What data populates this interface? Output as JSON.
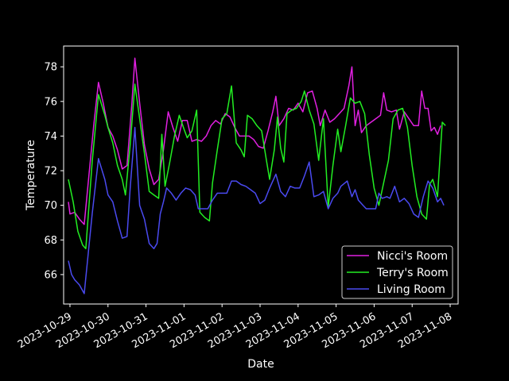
{
  "chart_data": {
    "type": "line",
    "xlabel": "Date",
    "ylabel": "Temperature",
    "x_range": [
      "2023-10-28T20:00",
      "2023-11-08T05:00"
    ],
    "ylim": [
      64.3,
      79.2
    ],
    "x_ticks": [
      "2023-10-29",
      "2023-10-30",
      "2023-10-31",
      "2023-11-01",
      "2023-11-02",
      "2023-11-03",
      "2023-11-04",
      "2023-11-05",
      "2023-11-06",
      "2023-11-07",
      "2023-11-08"
    ],
    "y_ticks": [
      66,
      68,
      70,
      72,
      74,
      76,
      78
    ],
    "grid": false,
    "legend_position": "lower-right",
    "series": [
      {
        "name": "Nicci's Room",
        "color": "#e020e0",
        "points": [
          [
            "2023-10-28T23:00",
            70.2
          ],
          [
            "2023-10-29T00:00",
            69.5
          ],
          [
            "2023-10-29T03:00",
            69.6
          ],
          [
            "2023-10-29T06:00",
            69.2
          ],
          [
            "2023-10-29T09:00",
            68.9
          ],
          [
            "2023-10-29T15:00",
            74.6
          ],
          [
            "2023-10-29T18:00",
            77.1
          ],
          [
            "2023-10-29T21:00",
            75.9
          ],
          [
            "2023-10-30T00:00",
            74.5
          ],
          [
            "2023-10-30T03:00",
            74.0
          ],
          [
            "2023-10-30T06:00",
            73.2
          ],
          [
            "2023-10-30T09:00",
            72.1
          ],
          [
            "2023-10-30T12:00",
            72.3
          ],
          [
            "2023-10-30T15:00",
            75.8
          ],
          [
            "2023-10-30T17:00",
            78.5
          ],
          [
            "2023-10-30T20:00",
            75.9
          ],
          [
            "2023-10-30T23:00",
            73.5
          ],
          [
            "2023-10-31T02:00",
            72.1
          ],
          [
            "2023-10-31T05:00",
            71.2
          ],
          [
            "2023-10-31T08:00",
            71.5
          ],
          [
            "2023-10-31T11:00",
            73.2
          ],
          [
            "2023-10-31T14:00",
            75.4
          ],
          [
            "2023-10-31T17:00",
            74.5
          ],
          [
            "2023-10-31T20:00",
            73.7
          ],
          [
            "2023-10-31T23:00",
            74.9
          ],
          [
            "2023-11-01T02:00",
            74.9
          ],
          [
            "2023-11-01T05:00",
            73.7
          ],
          [
            "2023-11-01T08:00",
            73.8
          ],
          [
            "2023-11-01T11:00",
            73.7
          ],
          [
            "2023-11-01T14:00",
            74.0
          ],
          [
            "2023-11-01T17:00",
            74.6
          ],
          [
            "2023-11-01T20:00",
            74.9
          ],
          [
            "2023-11-01T23:00",
            74.7
          ],
          [
            "2023-11-02T02:00",
            75.3
          ],
          [
            "2023-11-02T05:00",
            75.1
          ],
          [
            "2023-11-02T08:00",
            74.5
          ],
          [
            "2023-11-02T11:00",
            74.0
          ],
          [
            "2023-11-02T14:00",
            74.0
          ],
          [
            "2023-11-02T17:00",
            74.0
          ],
          [
            "2023-11-02T20:00",
            73.8
          ],
          [
            "2023-11-02T23:00",
            73.4
          ],
          [
            "2023-11-03T02:00",
            73.3
          ],
          [
            "2023-11-03T05:00",
            74.3
          ],
          [
            "2023-11-03T08:00",
            75.4
          ],
          [
            "2023-11-03T10:00",
            76.3
          ],
          [
            "2023-11-03T12:00",
            74.6
          ],
          [
            "2023-11-03T15:00",
            75.0
          ],
          [
            "2023-11-03T18:00",
            75.6
          ],
          [
            "2023-11-03T21:00",
            75.5
          ],
          [
            "2023-11-04T00:00",
            75.9
          ],
          [
            "2023-11-04T03:00",
            75.4
          ],
          [
            "2023-11-04T06:00",
            76.5
          ],
          [
            "2023-11-04T09:00",
            76.6
          ],
          [
            "2023-11-04T12:00",
            75.6
          ],
          [
            "2023-11-04T14:00",
            74.6
          ],
          [
            "2023-11-04T17:00",
            75.5
          ],
          [
            "2023-11-04T20:00",
            74.8
          ],
          [
            "2023-11-04T23:00",
            75.0
          ],
          [
            "2023-11-05T02:00",
            75.3
          ],
          [
            "2023-11-05T05:00",
            75.6
          ],
          [
            "2023-11-05T08:00",
            76.9
          ],
          [
            "2023-11-05T10:00",
            78.0
          ],
          [
            "2023-11-05T12:00",
            74.6
          ],
          [
            "2023-11-05T14:00",
            75.5
          ],
          [
            "2023-11-05T16:00",
            74.2
          ],
          [
            "2023-11-05T19:00",
            74.6
          ],
          [
            "2023-11-05T22:00",
            74.8
          ],
          [
            "2023-11-06T01:00",
            75.0
          ],
          [
            "2023-11-06T04:00",
            75.2
          ],
          [
            "2023-11-06T06:00",
            76.5
          ],
          [
            "2023-11-06T08:00",
            75.5
          ],
          [
            "2023-11-06T11:00",
            75.4
          ],
          [
            "2023-11-06T14:00",
            75.5
          ],
          [
            "2023-11-06T16:00",
            74.4
          ],
          [
            "2023-11-06T19:00",
            75.4
          ],
          [
            "2023-11-06T22:00",
            75.0
          ],
          [
            "2023-11-07T01:00",
            74.6
          ],
          [
            "2023-11-07T04:00",
            74.6
          ],
          [
            "2023-11-07T06:00",
            76.6
          ],
          [
            "2023-11-07T08:00",
            75.6
          ],
          [
            "2023-11-07T10:00",
            75.6
          ],
          [
            "2023-11-07T12:00",
            74.3
          ],
          [
            "2023-11-07T14:00",
            74.5
          ],
          [
            "2023-11-07T16:00",
            74.1
          ],
          [
            "2023-11-07T18:00",
            74.6
          ]
        ]
      },
      {
        "name": "Terry's Room",
        "color": "#22ee22",
        "points": [
          [
            "2023-10-28T23:00",
            71.5
          ],
          [
            "2023-10-29T02:00",
            70.2
          ],
          [
            "2023-10-29T05:00",
            68.5
          ],
          [
            "2023-10-29T08:00",
            67.7
          ],
          [
            "2023-10-29T10:00",
            67.5
          ],
          [
            "2023-10-29T14:00",
            72.5
          ],
          [
            "2023-10-29T18:00",
            76.4
          ],
          [
            "2023-10-29T22:00",
            75.2
          ],
          [
            "2023-10-30T00:00",
            74.5
          ],
          [
            "2023-10-30T03:00",
            73.6
          ],
          [
            "2023-10-30T06:00",
            72.3
          ],
          [
            "2023-10-30T09:00",
            71.5
          ],
          [
            "2023-10-30T11:00",
            70.6
          ],
          [
            "2023-10-30T14:00",
            73.5
          ],
          [
            "2023-10-30T17:00",
            77.0
          ],
          [
            "2023-10-30T20:00",
            75.0
          ],
          [
            "2023-10-30T23:00",
            73.0
          ],
          [
            "2023-10-31T02:00",
            70.8
          ],
          [
            "2023-10-31T05:00",
            70.6
          ],
          [
            "2023-10-31T08:00",
            70.4
          ],
          [
            "2023-10-31T10:00",
            74.1
          ],
          [
            "2023-10-31T12:00",
            71.1
          ],
          [
            "2023-10-31T15:00",
            72.5
          ],
          [
            "2023-10-31T18:00",
            74.0
          ],
          [
            "2023-10-31T21:00",
            75.2
          ],
          [
            "2023-11-01T00:00",
            74.4
          ],
          [
            "2023-11-01T02:00",
            73.9
          ],
          [
            "2023-11-01T05:00",
            74.3
          ],
          [
            "2023-11-01T08:00",
            75.5
          ],
          [
            "2023-11-01T10:00",
            69.6
          ],
          [
            "2023-11-01T13:00",
            69.3
          ],
          [
            "2023-11-01T16:00",
            69.1
          ],
          [
            "2023-11-01T18:00",
            71.3
          ],
          [
            "2023-11-01T21:00",
            73.2
          ],
          [
            "2023-11-02T00:00",
            75.0
          ],
          [
            "2023-11-02T03:00",
            75.3
          ],
          [
            "2023-11-02T06:00",
            76.9
          ],
          [
            "2023-11-02T09:00",
            73.6
          ],
          [
            "2023-11-02T12:00",
            73.2
          ],
          [
            "2023-11-02T14:00",
            72.8
          ],
          [
            "2023-11-02T16:00",
            75.2
          ],
          [
            "2023-11-02T19:00",
            75.0
          ],
          [
            "2023-11-02T22:00",
            74.6
          ],
          [
            "2023-11-03T01:00",
            74.3
          ],
          [
            "2023-11-03T04:00",
            72.6
          ],
          [
            "2023-11-03T06:00",
            71.5
          ],
          [
            "2023-11-03T09:00",
            73.2
          ],
          [
            "2023-11-03T11:00",
            75.1
          ],
          [
            "2023-11-03T13:00",
            73.3
          ],
          [
            "2023-11-03T15:00",
            72.5
          ],
          [
            "2023-11-03T17:00",
            75.3
          ],
          [
            "2023-11-03T20:00",
            75.5
          ],
          [
            "2023-11-03T23:00",
            75.6
          ],
          [
            "2023-11-04T02:00",
            76.0
          ],
          [
            "2023-11-04T04:00",
            76.6
          ],
          [
            "2023-11-04T07:00",
            75.5
          ],
          [
            "2023-11-04T10:00",
            74.7
          ],
          [
            "2023-11-04T13:00",
            72.6
          ],
          [
            "2023-11-04T16:00",
            75.0
          ],
          [
            "2023-11-04T19:00",
            69.9
          ],
          [
            "2023-11-04T22:00",
            72.3
          ],
          [
            "2023-11-05T01:00",
            74.4
          ],
          [
            "2023-11-05T03:00",
            73.1
          ],
          [
            "2023-11-05T06:00",
            74.6
          ],
          [
            "2023-11-05T09:00",
            76.2
          ],
          [
            "2023-11-05T12:00",
            75.9
          ],
          [
            "2023-11-05T15:00",
            76.0
          ],
          [
            "2023-11-05T18:00",
            75.3
          ],
          [
            "2023-11-05T21:00",
            72.9
          ],
          [
            "2023-11-06T00:00",
            71.0
          ],
          [
            "2023-11-06T03:00",
            70.0
          ],
          [
            "2023-11-06T06:00",
            71.3
          ],
          [
            "2023-11-06T09:00",
            72.6
          ],
          [
            "2023-11-06T12:00",
            75.0
          ],
          [
            "2023-11-06T15:00",
            75.5
          ],
          [
            "2023-11-06T18:00",
            75.6
          ],
          [
            "2023-11-06T21:00",
            74.5
          ],
          [
            "2023-11-07T00:00",
            72.3
          ],
          [
            "2023-11-07T03:00",
            70.5
          ],
          [
            "2023-11-07T06:00",
            69.5
          ],
          [
            "2023-11-07T09:00",
            69.2
          ],
          [
            "2023-11-07T11:00",
            71.2
          ],
          [
            "2023-11-07T13:00",
            71.5
          ],
          [
            "2023-11-07T16:00",
            70.5
          ],
          [
            "2023-11-07T19:00",
            74.8
          ],
          [
            "2023-11-07T21:00",
            74.6
          ]
        ]
      },
      {
        "name": "Living Room",
        "color": "#4a4af0",
        "points": [
          [
            "2023-10-28T23:00",
            66.8
          ],
          [
            "2023-10-29T01:00",
            66.0
          ],
          [
            "2023-10-29T03:00",
            65.7
          ],
          [
            "2023-10-29T06:00",
            65.4
          ],
          [
            "2023-10-29T09:00",
            64.9
          ],
          [
            "2023-10-29T14:00",
            69.5
          ],
          [
            "2023-10-29T18:00",
            72.7
          ],
          [
            "2023-10-29T22:00",
            71.5
          ],
          [
            "2023-10-30T00:00",
            70.6
          ],
          [
            "2023-10-30T03:00",
            70.2
          ],
          [
            "2023-10-30T06:00",
            69.1
          ],
          [
            "2023-10-30T09:00",
            68.1
          ],
          [
            "2023-10-30T12:00",
            68.2
          ],
          [
            "2023-10-30T14:00",
            71.0
          ],
          [
            "2023-10-30T17:00",
            74.5
          ],
          [
            "2023-10-30T20:00",
            70.0
          ],
          [
            "2023-10-30T23:00",
            69.2
          ],
          [
            "2023-10-31T02:00",
            67.8
          ],
          [
            "2023-10-31T05:00",
            67.5
          ],
          [
            "2023-10-31T07:00",
            67.8
          ],
          [
            "2023-10-31T09:00",
            69.5
          ],
          [
            "2023-10-31T11:00",
            70.2
          ],
          [
            "2023-10-31T13:00",
            71.0
          ],
          [
            "2023-10-31T16:00",
            70.7
          ],
          [
            "2023-10-31T19:00",
            70.3
          ],
          [
            "2023-10-31T22:00",
            70.7
          ],
          [
            "2023-11-01T01:00",
            71.0
          ],
          [
            "2023-11-01T04:00",
            70.9
          ],
          [
            "2023-11-01T07:00",
            70.6
          ],
          [
            "2023-11-01T09:00",
            69.8
          ],
          [
            "2023-11-01T12:00",
            69.8
          ],
          [
            "2023-11-01T15:00",
            69.8
          ],
          [
            "2023-11-01T18:00",
            70.3
          ],
          [
            "2023-11-01T21:00",
            70.7
          ],
          [
            "2023-11-02T00:00",
            70.7
          ],
          [
            "2023-11-02T03:00",
            70.7
          ],
          [
            "2023-11-02T06:00",
            71.4
          ],
          [
            "2023-11-02T09:00",
            71.4
          ],
          [
            "2023-11-02T12:00",
            71.2
          ],
          [
            "2023-11-02T15:00",
            71.1
          ],
          [
            "2023-11-02T18:00",
            70.9
          ],
          [
            "2023-11-02T21:00",
            70.7
          ],
          [
            "2023-11-03T00:00",
            70.1
          ],
          [
            "2023-11-03T03:00",
            70.3
          ],
          [
            "2023-11-03T06:00",
            71.0
          ],
          [
            "2023-11-03T10:00",
            71.8
          ],
          [
            "2023-11-03T13:00",
            70.8
          ],
          [
            "2023-11-03T16:00",
            70.5
          ],
          [
            "2023-11-03T19:00",
            71.1
          ],
          [
            "2023-11-03T22:00",
            71.0
          ],
          [
            "2023-11-04T01:00",
            71.0
          ],
          [
            "2023-11-04T04:00",
            71.7
          ],
          [
            "2023-11-04T07:00",
            72.5
          ],
          [
            "2023-11-04T10:00",
            70.5
          ],
          [
            "2023-11-04T13:00",
            70.6
          ],
          [
            "2023-11-04T16:00",
            70.8
          ],
          [
            "2023-11-04T19:00",
            69.8
          ],
          [
            "2023-11-04T22:00",
            70.4
          ],
          [
            "2023-11-05T01:00",
            70.7
          ],
          [
            "2023-11-05T03:00",
            71.1
          ],
          [
            "2023-11-05T07:00",
            71.4
          ],
          [
            "2023-11-05T10:00",
            70.5
          ],
          [
            "2023-11-05T12:00",
            70.9
          ],
          [
            "2023-11-05T14:00",
            70.3
          ],
          [
            "2023-11-05T17:00",
            70.0
          ],
          [
            "2023-11-05T19:00",
            69.8
          ],
          [
            "2023-11-05T22:00",
            69.8
          ],
          [
            "2023-11-06T01:00",
            69.8
          ],
          [
            "2023-11-06T03:00",
            70.7
          ],
          [
            "2023-11-06T05:00",
            70.4
          ],
          [
            "2023-11-06T08:00",
            70.5
          ],
          [
            "2023-11-06T10:00",
            70.4
          ],
          [
            "2023-11-06T13:00",
            71.1
          ],
          [
            "2023-11-06T16:00",
            70.2
          ],
          [
            "2023-11-06T19:00",
            70.4
          ],
          [
            "2023-11-06T22:00",
            70.1
          ],
          [
            "2023-11-07T01:00",
            69.5
          ],
          [
            "2023-11-07T04:00",
            69.3
          ],
          [
            "2023-11-07T07:00",
            70.5
          ],
          [
            "2023-11-07T10:00",
            71.4
          ],
          [
            "2023-11-07T13:00",
            71.0
          ],
          [
            "2023-11-07T16:00",
            70.2
          ],
          [
            "2023-11-07T18:00",
            70.4
          ],
          [
            "2023-11-07T20:00",
            70.0
          ]
        ]
      }
    ]
  }
}
